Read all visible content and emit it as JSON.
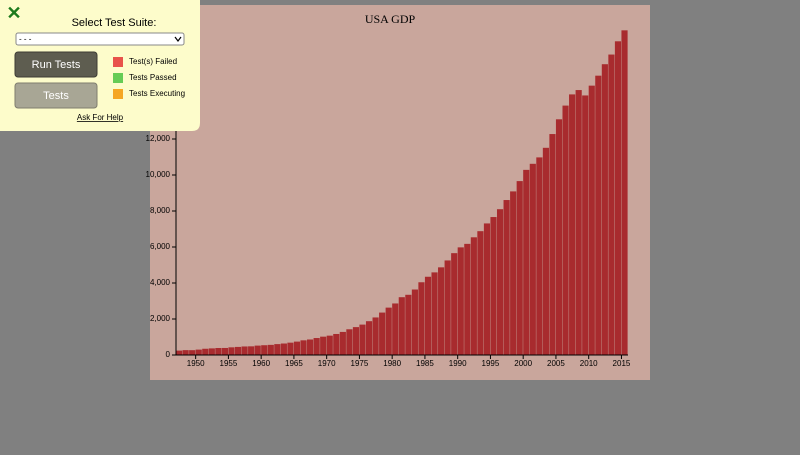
{
  "ui": {
    "close_icon": "✕",
    "select_label": "Select Test Suite:",
    "select_value": "- - -",
    "run_button": "Run Tests",
    "tests_button": "Tests",
    "legend": [
      {
        "label": "Test(s) Failed",
        "color": "#e8524a"
      },
      {
        "label": "Tests Passed",
        "color": "#66cc55"
      },
      {
        "label": "Tests Executing",
        "color": "#f5a623"
      }
    ],
    "help_link": "Ask For Help"
  },
  "chart_data": {
    "type": "bar",
    "title": "USA GDP",
    "color": "#a82b2e",
    "x": [
      1947,
      1948,
      1949,
      1950,
      1951,
      1952,
      1953,
      1954,
      1955,
      1956,
      1957,
      1958,
      1959,
      1960,
      1961,
      1962,
      1963,
      1964,
      1965,
      1966,
      1967,
      1968,
      1969,
      1970,
      1971,
      1972,
      1973,
      1974,
      1975,
      1976,
      1977,
      1978,
      1979,
      1980,
      1981,
      1982,
      1983,
      1984,
      1985,
      1986,
      1987,
      1988,
      1989,
      1990,
      1991,
      1992,
      1993,
      1994,
      1995,
      1996,
      1997,
      1998,
      1999,
      2000,
      2001,
      2002,
      2003,
      2004,
      2005,
      2006,
      2007,
      2008,
      2009,
      2010,
      2011,
      2012,
      2013,
      2014,
      2015
    ],
    "values": [
      244,
      270,
      268,
      300,
      347,
      367,
      389,
      391,
      426,
      449,
      474,
      481,
      522,
      543,
      563,
      605,
      638,
      686,
      744,
      815,
      862,
      943,
      1019,
      1075,
      1168,
      1282,
      1429,
      1549,
      1689,
      1878,
      2086,
      2357,
      2632,
      2863,
      3211,
      3345,
      3638,
      4041,
      4347,
      4590,
      4870,
      5253,
      5658,
      5980,
      6174,
      6539,
      6879,
      7309,
      7664,
      8100,
      8609,
      9089,
      9661,
      10285,
      10622,
      10978,
      11511,
      12275,
      13094,
      13856,
      14478,
      14719,
      14419,
      14964,
      15518,
      16155,
      16692,
      17428,
      18037
    ],
    "xlim": [
      1947,
      2016
    ],
    "xticks": [
      1950,
      1955,
      1960,
      1965,
      1970,
      1975,
      1980,
      1985,
      1990,
      1995,
      2000,
      2005,
      2010,
      2015
    ],
    "ylim": [
      0,
      18000
    ],
    "yticks": [
      0,
      {
        "value": 2000,
        "label": "2,000"
      },
      {
        "value": 4000,
        "label": "4,000"
      },
      {
        "value": 6000,
        "label": "6,000"
      },
      {
        "value": 8000,
        "label": "8,000"
      },
      {
        "value": 10000,
        "label": "10,000"
      },
      {
        "value": 12000,
        "label": "12,000"
      }
    ]
  }
}
